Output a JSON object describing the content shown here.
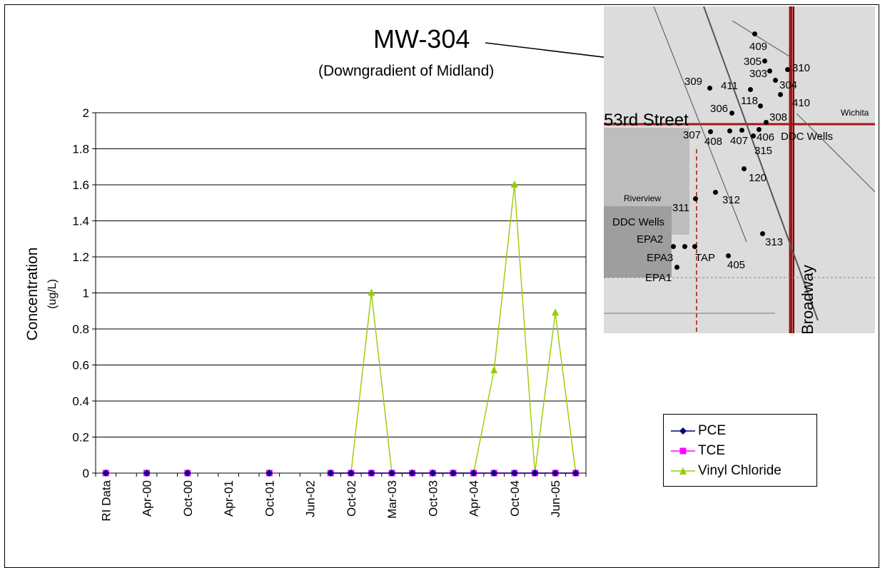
{
  "chart_data": {
    "type": "line",
    "title": "MW-304",
    "subtitle": "(Downgradient of Midland)",
    "ylabel_line1": "Concentration",
    "ylabel_line2": "(ug/L)",
    "ylim": [
      0,
      2
    ],
    "yticks": [
      "0",
      "0.2",
      "0.4",
      "0.6",
      "0.8",
      "1",
      "1.2",
      "1.4",
      "1.6",
      "1.8",
      "2"
    ],
    "categories": [
      "RI Data",
      "",
      "Apr-00",
      "",
      "Oct-00",
      "",
      "Apr-01",
      "",
      "Oct-01",
      "",
      "Jun-02",
      "",
      "Oct-02",
      "",
      "Mar-03",
      "",
      "Oct-03",
      "",
      "Apr-04",
      "",
      "Oct-04",
      "",
      "Jun-05",
      ""
    ],
    "grid": true,
    "legend_position": "bottom-right",
    "series": [
      {
        "name": "PCE",
        "color": "#000080",
        "marker": "diamond",
        "values": [
          0,
          null,
          0,
          null,
          0,
          null,
          null,
          null,
          0,
          null,
          null,
          0,
          0,
          0,
          0,
          0,
          0,
          0,
          0,
          0,
          0,
          0,
          0,
          0
        ]
      },
      {
        "name": "TCE",
        "color": "#ff00ff",
        "marker": "square",
        "values": [
          0,
          null,
          0,
          null,
          0,
          null,
          null,
          null,
          0,
          null,
          null,
          0,
          0,
          0,
          0,
          0,
          0,
          0,
          0,
          0,
          0,
          0,
          0,
          0
        ]
      },
      {
        "name": "Vinyl Chloride",
        "color": "#99cc00",
        "marker": "triangle",
        "values": [
          0,
          null,
          0,
          null,
          0,
          null,
          null,
          null,
          0,
          null,
          null,
          0,
          0,
          1.0,
          0,
          0,
          0,
          0,
          0,
          0.57,
          1.6,
          0,
          0.89,
          0
        ]
      }
    ]
  },
  "map": {
    "labels": {
      "street_53rd": "53rd Street",
      "broadway": "Broadway",
      "wichita": "Wichita",
      "riverview": "Riverview",
      "ddc_wells_1": "DDC Wells",
      "ddc_wells_2": "DDC Wells",
      "tap": "TAP",
      "epa1": "EPA1",
      "epa2": "EPA2",
      "epa3": "EPA3",
      "w409": "409",
      "w305": "305",
      "w303": "303",
      "w310": "310",
      "w309": "309",
      "w411": "411",
      "w304": "304",
      "w410": "410",
      "w118": "118",
      "w306": "306",
      "w308": "308",
      "w307": "307",
      "w408": "408",
      "w407": "407",
      "w406": "406",
      "w315": "315",
      "w120": "120",
      "w311": "311",
      "w312": "312",
      "w313": "313",
      "w405": "405"
    }
  },
  "colors": {
    "accent_map_road": "#a31515"
  }
}
